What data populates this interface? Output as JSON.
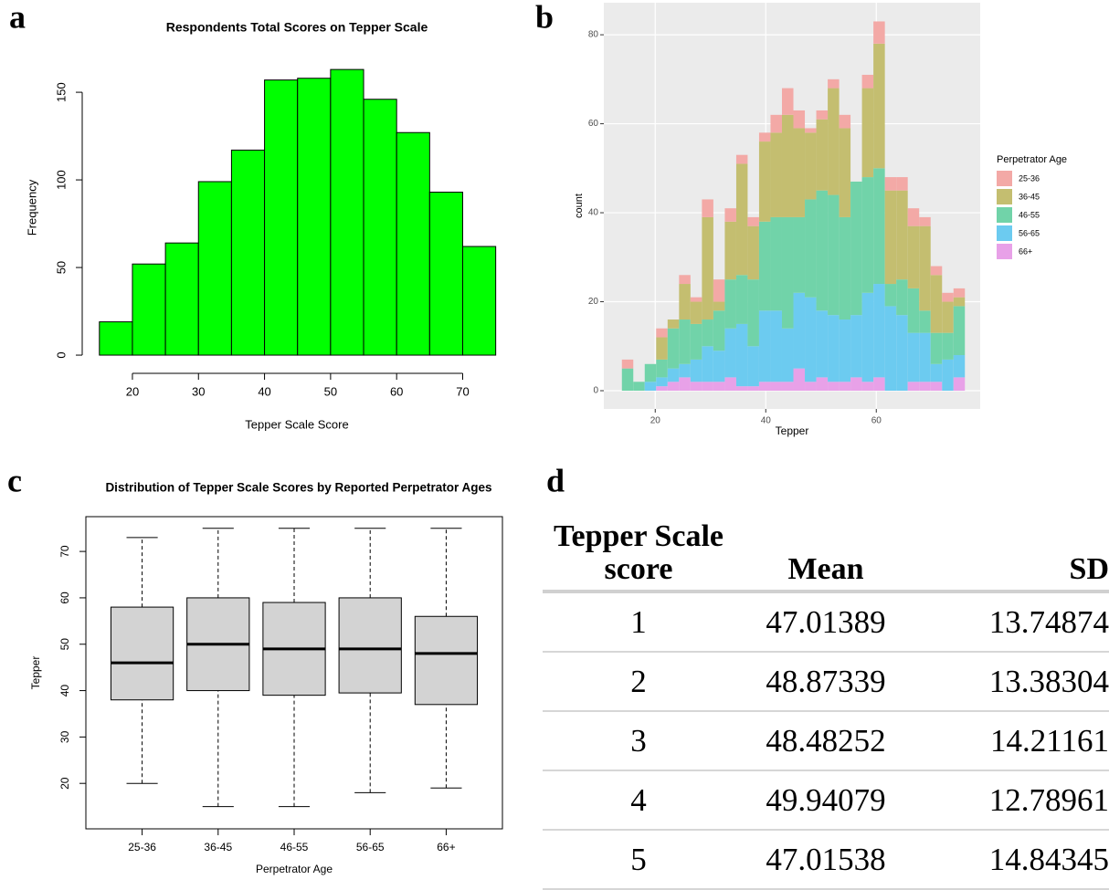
{
  "panel_labels": [
    "a",
    "b",
    "c",
    "d"
  ],
  "chart_data": [
    {
      "type": "histogram",
      "title": "Respondents Total Scores on Tepper Scale",
      "x_label": "Tepper Scale Score",
      "y_label": "Frequency",
      "bins": [
        15,
        20,
        25,
        30,
        35,
        40,
        45,
        50,
        55,
        60,
        65,
        70,
        75
      ],
      "values": [
        19,
        52,
        64,
        99,
        117,
        157,
        158,
        163,
        146,
        127,
        93,
        62
      ],
      "color": "#00ff00",
      "xlim": [
        12.4,
        77.4
      ],
      "ylim": [
        -3.1,
        171.4
      ],
      "xticks": [
        20,
        30,
        40,
        50,
        60,
        70
      ],
      "yticks": [
        0,
        50,
        100,
        150
      ],
      "grid": false
    },
    {
      "type": "histogram",
      "x_label": "Tepper",
      "y_label": "count",
      "legend_title": "Perpetrator Age",
      "bins": [
        13.97,
        16.03,
        18.1,
        20.17,
        22.24,
        24.31,
        26.38,
        28.45,
        30.52,
        32.59,
        34.66,
        36.72,
        38.79,
        40.86,
        42.93,
        45,
        47.07,
        49.14,
        51.21,
        53.28,
        55.34,
        57.41,
        59.48,
        61.55,
        63.62,
        65.69,
        67.76,
        69.83,
        71.9,
        73.97,
        76.03
      ],
      "series": [
        {
          "name": "25-36",
          "color": "#f3a9a6",
          "values": [
            2,
            0,
            0,
            2,
            0,
            2,
            1,
            4,
            5,
            3,
            2,
            2,
            2,
            4,
            6,
            4,
            1,
            2,
            2,
            3,
            0,
            3,
            5,
            3,
            3,
            4,
            2,
            2,
            2,
            2
          ]
        },
        {
          "name": "36-45",
          "color": "#c4be70",
          "values": [
            0,
            0,
            0,
            5,
            2,
            8,
            5,
            23,
            2,
            13,
            25,
            12,
            18,
            19,
            23,
            20,
            15,
            16,
            24,
            20,
            0,
            20,
            28,
            21,
            20,
            14,
            19,
            13,
            7,
            2
          ]
        },
        {
          "name": "46-55",
          "color": "#71d3a9",
          "values": [
            5,
            2,
            4,
            4,
            9,
            10,
            8,
            6,
            9,
            11,
            11,
            15,
            20,
            21,
            25,
            17,
            22,
            27,
            27,
            23,
            30,
            26,
            26,
            5,
            8,
            10,
            5,
            7,
            6,
            11
          ]
        },
        {
          "name": "56-65",
          "color": "#6ccbf0",
          "values": [
            0,
            0,
            2,
            2,
            3,
            3,
            5,
            8,
            7,
            11,
            14,
            9,
            16,
            16,
            12,
            17,
            19,
            15,
            15,
            14,
            14,
            20,
            21,
            19,
            17,
            11,
            11,
            4,
            7,
            5
          ]
        },
        {
          "name": "66+",
          "color": "#e8a1e8",
          "values": [
            0,
            0,
            0,
            1,
            2,
            3,
            2,
            2,
            2,
            3,
            1,
            1,
            2,
            2,
            2,
            5,
            2,
            3,
            2,
            2,
            3,
            2,
            3,
            0,
            0,
            2,
            2,
            2,
            0,
            3
          ]
        }
      ],
      "xlim": [
        10.7,
        78.8
      ],
      "ylim": [
        -4.1,
        87.2
      ],
      "xticks": [
        20,
        40,
        60
      ],
      "yticks": [
        0,
        20,
        40,
        60,
        80
      ],
      "grid": true
    },
    {
      "type": "box",
      "title": "Distribution of Tepper Scale Scores by Reported Perpetrator Ages",
      "x_label": "Perpetrator Age",
      "y_label": "Tepper",
      "categories": [
        "25-36",
        "36-45",
        "46-55",
        "56-65",
        "66+"
      ],
      "whisker_low": [
        20,
        15,
        15,
        18,
        19
      ],
      "q1": [
        38,
        40,
        39,
        39.5,
        37
      ],
      "median": [
        46,
        50,
        49,
        49,
        48
      ],
      "q3": [
        58,
        60,
        59,
        60,
        56
      ],
      "whisker_high": [
        73,
        75,
        75,
        75,
        75
      ],
      "color": "#d3d3d3",
      "ylim": [
        10.2,
        77.5
      ],
      "yticks": [
        20,
        30,
        40,
        50,
        60,
        70
      ]
    }
  ],
  "table": {
    "header": [
      "Tepper Scale score",
      "Mean",
      "SD"
    ],
    "rows": [
      [
        1,
        47.01389,
        13.74874
      ],
      [
        2,
        48.87339,
        13.38304
      ],
      [
        3,
        48.48252,
        14.21161
      ],
      [
        4,
        49.94079,
        12.78961
      ],
      [
        5,
        47.01538,
        14.84345
      ]
    ]
  }
}
